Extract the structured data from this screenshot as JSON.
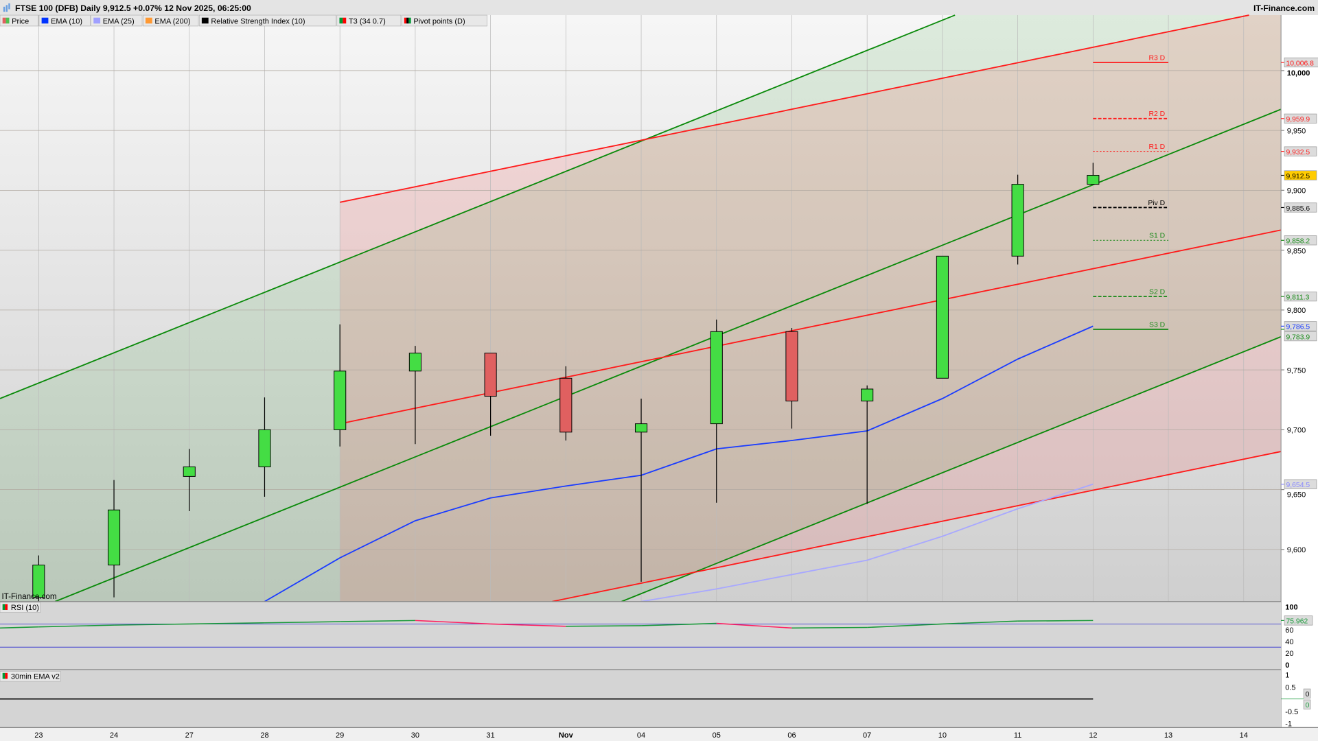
{
  "header": {
    "title": "FTSE 100 (DFB) Daily 9,912.5 +0.07% 12 Nov 2025, 06:25:00",
    "brand": "IT-Finance.com",
    "watermark": "IT-Finance.com"
  },
  "legend": [
    {
      "label": "Price",
      "colors": [
        "#e06060",
        "#50c050"
      ]
    },
    {
      "label": "EMA (10)",
      "colors": [
        "#0033ff"
      ]
    },
    {
      "label": "EMA (25)",
      "colors": [
        "#a0a0ff"
      ]
    },
    {
      "label": "EMA (200)",
      "colors": [
        "#ff9933"
      ]
    },
    {
      "label": "Relative Strength Index (10)",
      "colors": [
        "#000000"
      ]
    },
    {
      "label": "T3 (34 0.7)",
      "colors": [
        "#009933",
        "#ff0000"
      ]
    },
    {
      "label": "Pivot points (D)",
      "colors": [
        "#ff0000",
        "#000000",
        "#009933"
      ]
    }
  ],
  "colors": {
    "up": "#44dd44",
    "down": "#e06060",
    "ema10": "#1a3cff",
    "ema25": "#a8a8ff",
    "channel_green": "#0a8a0a",
    "channel_red": "#ff1a1a",
    "last_price_bg": "#ffcc00"
  },
  "chart_data": {
    "type": "candlestick",
    "dates": [
      "23",
      "24",
      "27",
      "28",
      "29",
      "30",
      "31",
      "Nov",
      "04",
      "05",
      "06",
      "07",
      "10",
      "11",
      "12",
      "13",
      "14"
    ],
    "ohlc": [
      [
        9560,
        9595,
        9550,
        9587
      ],
      [
        9587,
        9658,
        9560,
        9633
      ],
      [
        9661,
        9684,
        9632,
        9669
      ],
      [
        9669,
        9727,
        9644,
        9700
      ],
      [
        9700,
        9788,
        9686,
        9749
      ],
      [
        9749,
        9770,
        9688,
        9764
      ],
      [
        9764,
        9764,
        9695,
        9728
      ],
      [
        9743,
        9753,
        9691,
        9698
      ],
      [
        9698,
        9726,
        9573,
        9705
      ],
      [
        9705,
        9792,
        9639,
        9782
      ],
      [
        9782,
        9785,
        9701,
        9724
      ],
      [
        9724,
        9737,
        9638,
        9734
      ],
      [
        9743,
        9845,
        9743,
        9845
      ],
      [
        9845,
        9913,
        9838,
        9905
      ],
      [
        9905,
        9923,
        9905,
        9912.5
      ]
    ],
    "ema10": [
      null,
      null,
      null,
      9556,
      9593,
      9624,
      9643,
      9653,
      9662,
      9684,
      9691,
      9699,
      9726,
      9759,
      9786.5
    ],
    "ema25": [
      null,
      null,
      null,
      null,
      null,
      null,
      null,
      null,
      9556,
      9567,
      9579,
      9591,
      9611,
      9634,
      9654.5
    ],
    "channels": [
      {
        "color": "green",
        "start": {
          "date": "23",
          "price": 9739
        },
        "slope_per_bar": 25.26
      },
      {
        "color": "green",
        "start": {
          "date": "23",
          "price": 9551
        },
        "slope_per_bar": 25.26
      },
      {
        "color": "green",
        "start": {
          "date": "23",
          "price": 9361
        },
        "slope_per_bar": 25.26
      },
      {
        "color": "red",
        "start": {
          "date": "29",
          "price": 9890
        },
        "slope_per_bar": 12.95
      },
      {
        "color": "red",
        "start": {
          "date": "29",
          "price": 9705
        },
        "slope_per_bar": 12.95
      },
      {
        "color": "red",
        "start": {
          "date": "29",
          "price": 9520
        },
        "slope_per_bar": 12.95
      }
    ],
    "pivots": [
      {
        "label": "R3 D",
        "value": 10006.8,
        "value_label": "10,006.8",
        "color": "#ff1a1a",
        "style": "solid"
      },
      {
        "label": "R2 D",
        "value": 9959.9,
        "value_label": "9,959.9",
        "color": "#ff1a1a",
        "style": "dashed"
      },
      {
        "label": "R1 D",
        "value": 9932.5,
        "value_label": "9,932.5",
        "color": "#ff1a1a",
        "style": "dotted"
      },
      {
        "label": "Piv D",
        "value": 9885.6,
        "value_label": "9,885.6",
        "color": "#000000",
        "style": "dashed"
      },
      {
        "label": "S1 D",
        "value": 9858.2,
        "value_label": "9,858.2",
        "color": "#1a8a1a",
        "style": "dotted"
      },
      {
        "label": "S2 D",
        "value": 9811.3,
        "value_label": "9,811.3",
        "color": "#1a8a1a",
        "style": "dashed"
      },
      {
        "label": "S3 D",
        "value": 9783.9,
        "value_label": "9,783.9",
        "color": "#1a8a1a",
        "style": "solid"
      }
    ],
    "price_axis": {
      "ticks": [
        10000,
        9950,
        9900,
        9850,
        9800,
        9750,
        9700,
        9650,
        9600
      ],
      "tick_labels": [
        "10,000",
        "9,950",
        "9,900",
        "9,850",
        "9,800",
        "9,750",
        "9,700",
        "9,650",
        "9,600"
      ],
      "range": [
        9556,
        10046
      ]
    },
    "markers": [
      {
        "value": 9912.5,
        "label": "9,912.5",
        "color": "#000000",
        "bg": "#ffcc00"
      },
      {
        "value": 9786.5,
        "label": "9,786.5",
        "color": "#1a3cff",
        "bg": "#dcdcdc"
      },
      {
        "value": 9654.5,
        "label": "9,654.5",
        "color": "#8888ff",
        "bg": "#dcdcdc"
      }
    ],
    "rsi": {
      "title": "RSI (10)",
      "values": [
        65,
        68,
        70,
        72,
        74,
        76,
        70,
        66,
        67,
        71,
        63,
        64,
        70,
        75,
        75.962
      ],
      "last_label": "75.962",
      "levels": [
        70,
        30
      ],
      "ticks": [
        100,
        60,
        40,
        20,
        0
      ],
      "tick_labels": [
        "100",
        "60",
        "40",
        "20",
        "0"
      ]
    },
    "ema_panel": {
      "title": "30min EMA v2",
      "value": 0,
      "value_labels": [
        "0",
        "0"
      ],
      "ticks": [
        1,
        0.5,
        -0.5,
        -1
      ],
      "tick_labels": [
        "1",
        "0.5",
        "-0.5",
        "-1"
      ]
    }
  }
}
